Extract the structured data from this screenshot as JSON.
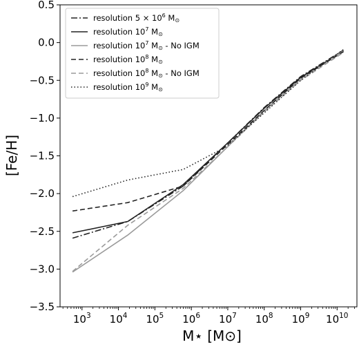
{
  "chart_data": {
    "type": "line",
    "xlabel": "M⋆ [M⊙]",
    "ylabel": "[Fe/H]",
    "xscale": "log",
    "xlim": [
      250,
      35000000000
    ],
    "ylim": [
      -3.5,
      0.5
    ],
    "grid": false,
    "legend_position": "top-left",
    "x_ticks": [
      {
        "value": 1000,
        "base": "10",
        "exp": "3"
      },
      {
        "value": 10000,
        "base": "10",
        "exp": "4"
      },
      {
        "value": 100000,
        "base": "10",
        "exp": "5"
      },
      {
        "value": 1000000,
        "base": "10",
        "exp": "6"
      },
      {
        "value": 10000000,
        "base": "10",
        "exp": "7"
      },
      {
        "value": 100000000,
        "base": "10",
        "exp": "8"
      },
      {
        "value": 1000000000,
        "base": "10",
        "exp": "9"
      },
      {
        "value": 10000000000,
        "base": "10",
        "exp": "10"
      }
    ],
    "y_ticks": [
      {
        "value": 0.5,
        "label": "0.5"
      },
      {
        "value": 0.0,
        "label": "0.0"
      },
      {
        "value": -0.5,
        "label": "−0.5"
      },
      {
        "value": -1.0,
        "label": "−1.0"
      },
      {
        "value": -1.5,
        "label": "−1.5"
      },
      {
        "value": -2.0,
        "label": "−2.0"
      },
      {
        "value": -2.5,
        "label": "−2.5"
      },
      {
        "value": -3.0,
        "label": "−3.0"
      },
      {
        "value": -3.5,
        "label": "−3.5"
      }
    ],
    "series": [
      {
        "name": "resolution 5 × 10^6 M⊙",
        "legend_parts": [
          "resolution 5 × 10",
          "6",
          " M",
          "⊙"
        ],
        "color": "#222222",
        "dash": "9,3,2,3",
        "width": 1.6,
        "x": [
          550,
          18000,
          600000,
          9000000,
          100000000,
          1000000000,
          15000000000
        ],
        "y": [
          -2.59,
          -2.37,
          -1.9,
          -1.35,
          -0.86,
          -0.45,
          -0.1
        ]
      },
      {
        "name": "resolution 10^7 M⊙",
        "legend_parts": [
          "resolution 10",
          "7",
          " M",
          "⊙"
        ],
        "color": "#222222",
        "dash": "",
        "width": 1.6,
        "x": [
          550,
          18000,
          600000,
          9000000,
          100000000,
          1000000000,
          15000000000
        ],
        "y": [
          -2.52,
          -2.37,
          -1.88,
          -1.35,
          -0.87,
          -0.46,
          -0.11
        ]
      },
      {
        "name": "resolution 10^7 M⊙ - No IGM",
        "legend_parts": [
          "resolution 10",
          "7",
          " M",
          "⊙",
          " - No IGM"
        ],
        "color": "#9a9a9a",
        "dash": "",
        "width": 1.6,
        "x": [
          550,
          18000,
          600000,
          9000000,
          100000000,
          1000000000,
          15000000000
        ],
        "y": [
          -3.04,
          -2.55,
          -1.96,
          -1.4,
          -0.9,
          -0.48,
          -0.11
        ]
      },
      {
        "name": "resolution 10^8 M⊙",
        "legend_parts": [
          "resolution 10",
          "8",
          " M",
          "⊙"
        ],
        "color": "#222222",
        "dash": "7,4",
        "width": 1.6,
        "x": [
          550,
          18000,
          600000,
          9000000,
          100000000,
          1000000000,
          15000000000
        ],
        "y": [
          -2.23,
          -2.12,
          -1.9,
          -1.37,
          -0.9,
          -0.47,
          -0.12
        ]
      },
      {
        "name": "resolution 10^8 M⊙ - No IGM",
        "legend_parts": [
          "resolution 10",
          "8",
          " M",
          "⊙",
          " - No IGM"
        ],
        "color": "#9a9a9a",
        "dash": "7,4",
        "width": 1.6,
        "x": [
          550,
          18000,
          600000,
          9000000,
          100000000,
          1000000000,
          15000000000
        ],
        "y": [
          -3.03,
          -2.42,
          -1.93,
          -1.4,
          -0.92,
          -0.5,
          -0.13
        ]
      },
      {
        "name": "resolution 10^9 M⊙",
        "legend_parts": [
          "resolution 10",
          "9",
          " M",
          "⊙"
        ],
        "color": "#222222",
        "dash": "1.5,3",
        "width": 1.6,
        "x": [
          550,
          18000,
          600000,
          9000000,
          100000000,
          1000000000,
          15000000000
        ],
        "y": [
          -2.04,
          -1.82,
          -1.68,
          -1.38,
          -0.93,
          -0.5,
          -0.09
        ]
      }
    ]
  }
}
